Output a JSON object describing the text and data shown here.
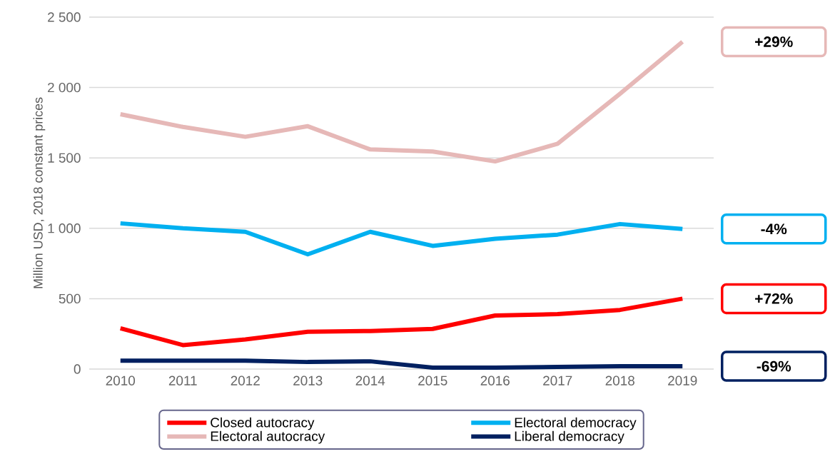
{
  "chart_data": {
    "type": "line",
    "ylabel": "Million USD, 2018 constant prices",
    "x": [
      2010,
      2011,
      2012,
      2013,
      2014,
      2015,
      2016,
      2017,
      2018,
      2019
    ],
    "xlim": [
      2009.5,
      2019.5
    ],
    "xticks": [
      2010,
      2011,
      2012,
      2013,
      2014,
      2015,
      2016,
      2017,
      2018,
      2019
    ],
    "ylim": [
      0,
      2500
    ],
    "yticks": [
      0,
      500,
      {
        "value": 1000,
        "label": "1 000"
      },
      {
        "value": 1500,
        "label": "1 500"
      },
      {
        "value": 2000,
        "label": "2 000"
      },
      {
        "value": 2500,
        "label": "2 500"
      }
    ],
    "grid": "y",
    "legend": "bottom",
    "marker": "none",
    "line_style": "solid",
    "series": [
      {
        "name": "Closed autocracy",
        "color": "#ff0000",
        "values": [
          290,
          170,
          210,
          265,
          270,
          285,
          380,
          390,
          420,
          500
        ]
      },
      {
        "name": "Electoral autocracy",
        "color": "#e6b8b7",
        "values": [
          1810,
          1720,
          1650,
          1725,
          1560,
          1545,
          1475,
          1600,
          1955,
          2325
        ]
      },
      {
        "name": "Electoral democracy",
        "color": "#00b0f0",
        "values": [
          1035,
          1000,
          975,
          815,
          975,
          875,
          925,
          955,
          1030,
          995
        ]
      },
      {
        "name": "Liberal democracy",
        "color": "#002060",
        "values": [
          60,
          60,
          60,
          50,
          55,
          10,
          10,
          15,
          20,
          20
        ]
      }
    ],
    "annotations": [
      "+72%",
      "+29%",
      "-4%",
      "-69%"
    ]
  }
}
